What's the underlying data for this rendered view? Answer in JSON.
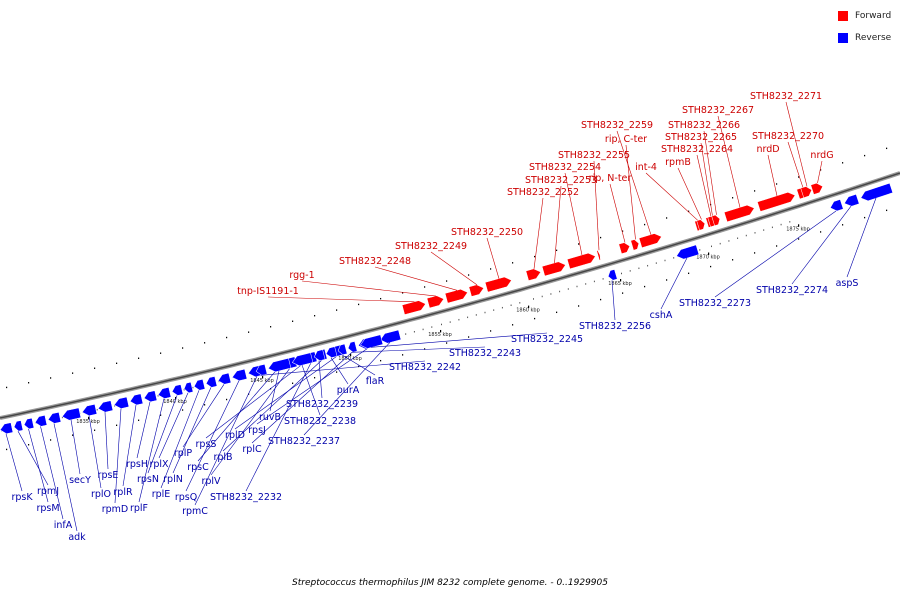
{
  "legend": {
    "forward": {
      "label": "Forward",
      "color": "#ff0000"
    },
    "reverse": {
      "label": "Reverse",
      "color": "#0000ff"
    }
  },
  "caption": "Streptococcus thermophilus JIM 8232 complete genome. - 0..1929905",
  "chart_data": {
    "type": "genome-map",
    "genome": "Streptococcus thermophilus JIM 8232",
    "range_bp": [
      0,
      1929905
    ],
    "colors": {
      "forward": "#ff0000",
      "reverse": "#0000ff",
      "label_forward": "#cc0000",
      "label_reverse": "#0000aa"
    },
    "ticks": [
      "1835 kbp",
      "1840 kbp",
      "1845 kbp",
      "1850 kbp",
      "1855 kbp",
      "1860 kbp",
      "1865 kbp",
      "1870 kbp",
      "1875 kbp"
    ],
    "forward_genes": [
      "tnp-IS1191-1",
      "rgg-1",
      "STH8232_2248",
      "STH8232_2249",
      "STH8232_2250",
      "STH8232_2252",
      "STH8232_2253",
      "STH8232_2254",
      "STH8232_2255",
      "rip, N-ter",
      "rip, C-ter",
      "STH8232_2259",
      "int-4",
      "rpmB",
      "STH8232_2264",
      "STH8232_2265",
      "STH8232_2266",
      "STH8232_2267",
      "nrdD",
      "STH8232_2270",
      "STH8232_2271",
      "nrdG"
    ],
    "reverse_genes": [
      "rpsK",
      "rpmJ",
      "rpsM",
      "infA",
      "adk",
      "secY",
      "rplO",
      "rpsE",
      "rpmD",
      "rplR",
      "rpsH",
      "rplF",
      "rpsN",
      "rplX",
      "rplE",
      "rplN",
      "rplP",
      "rpsQ",
      "rpmC",
      "rpsC",
      "rplV",
      "rpsS",
      "STH8232_2232",
      "rplB",
      "rplD",
      "rplC",
      "rpsJ",
      "STH8232_2237",
      "ruvB",
      "STH8232_2238",
      "STH8232_2239",
      "purA",
      "flaR",
      "STH8232_2242",
      "STH8232_2243",
      "STH8232_2245",
      "STH8232_2256",
      "cshA",
      "STH8232_2273",
      "STH8232_2274",
      "aspS"
    ]
  }
}
